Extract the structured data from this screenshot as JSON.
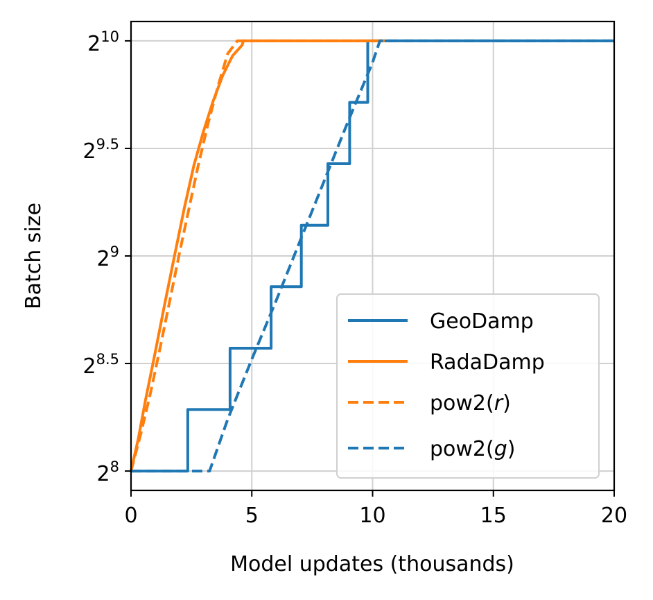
{
  "chart_data": {
    "type": "line",
    "xlabel": "Model updates (thousands)",
    "ylabel": "Batch size",
    "xlim": [
      0,
      20
    ],
    "ylim_log2": [
      7.91,
      10.09
    ],
    "y_scale": "log2",
    "grid": true,
    "legend_placement": "lower right",
    "x_ticks": [
      {
        "value": 0,
        "label": "0"
      },
      {
        "value": 5,
        "label": "5"
      },
      {
        "value": 10,
        "label": "10"
      },
      {
        "value": 15,
        "label": "15"
      },
      {
        "value": 20,
        "label": "20"
      }
    ],
    "y_ticks": [
      {
        "value": 8,
        "base": "2",
        "exp": "8"
      },
      {
        "value": 8.5,
        "base": "2",
        "exp": "8.5"
      },
      {
        "value": 9,
        "base": "2",
        "exp": "9"
      },
      {
        "value": 9.5,
        "base": "2",
        "exp": "9.5"
      },
      {
        "value": 10,
        "base": "2",
        "exp": "10"
      }
    ],
    "series": [
      {
        "name": "GeoDamp",
        "color": "#1f77b4",
        "style": "solid",
        "kind": "step",
        "x": [
          0,
          2.35,
          2.35,
          4.1,
          4.1,
          5.8,
          5.8,
          7.05,
          7.05,
          8.15,
          8.15,
          9.05,
          9.05,
          9.8,
          9.8,
          20
        ],
        "y_log2": [
          8,
          8,
          8.286,
          8.286,
          8.571,
          8.571,
          8.857,
          8.857,
          9.143,
          9.143,
          9.429,
          9.429,
          9.714,
          9.714,
          10,
          10
        ]
      },
      {
        "name": "RadaDamp",
        "color": "#ff7f0e",
        "style": "solid",
        "kind": "line",
        "x": [
          0,
          0.3,
          0.6,
          1.0,
          1.4,
          1.8,
          2.2,
          2.6,
          3.0,
          3.4,
          3.8,
          4.2,
          4.6,
          4.65,
          10.5
        ],
        "y_log2": [
          8.0,
          8.15,
          8.33,
          8.55,
          8.78,
          9.0,
          9.22,
          9.42,
          9.58,
          9.72,
          9.84,
          9.93,
          9.98,
          10.0,
          10.0
        ]
      },
      {
        "name": "pow2(r)",
        "label_base": "pow2(",
        "label_var": "r",
        "label_end": ")",
        "color": "#ff7f0e",
        "style": "dashed",
        "kind": "line",
        "x": [
          0,
          0.4,
          0.8,
          1.2,
          1.6,
          2.0,
          2.4,
          2.8,
          3.2,
          3.6,
          4.0,
          4.4,
          10.5
        ],
        "y_log2": [
          8.0,
          8.17,
          8.36,
          8.57,
          8.79,
          9.01,
          9.22,
          9.43,
          9.62,
          9.79,
          9.94,
          10.0,
          10.0
        ]
      },
      {
        "name": "pow2(g)",
        "label_base": "pow2(",
        "label_var": "g",
        "label_end": ")",
        "color": "#1f77b4",
        "style": "dashed",
        "kind": "line",
        "x": [
          0,
          3.25,
          4.0,
          5.0,
          6.0,
          7.0,
          8.0,
          9.0,
          10.0,
          10.3,
          20
        ],
        "y_log2": [
          8,
          8,
          8.24,
          8.52,
          8.79,
          9.07,
          9.35,
          9.63,
          9.9,
          10,
          10
        ]
      }
    ]
  }
}
